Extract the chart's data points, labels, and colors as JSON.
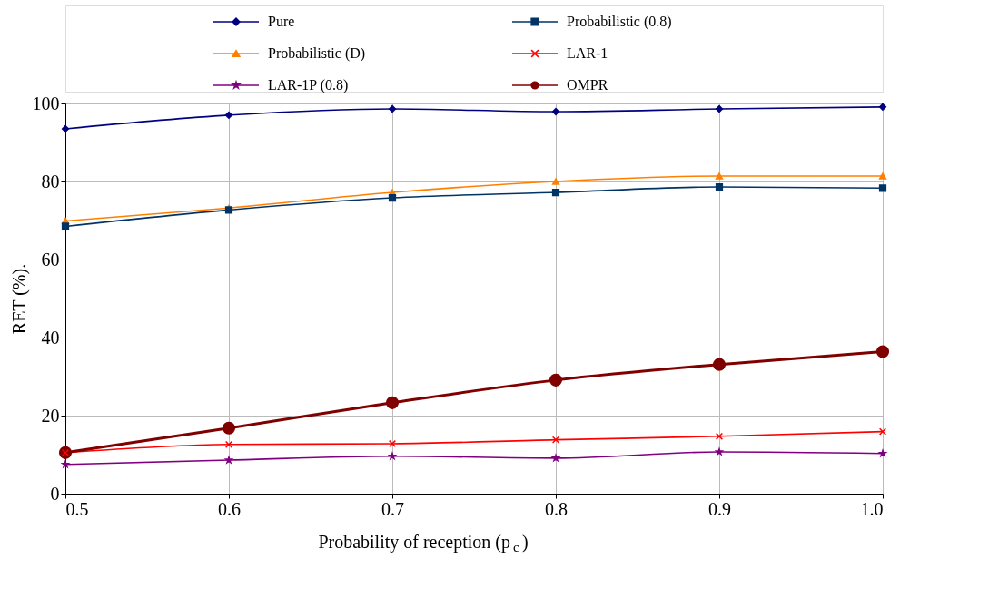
{
  "chart_data": {
    "type": "line",
    "xlabel": "Probability of reception (p$_{c}$)",
    "ylabel": "RET  (%).",
    "x": [
      0.5,
      0.6,
      0.7,
      0.8,
      0.9,
      1.0
    ],
    "xlim": [
      0.5,
      1.0
    ],
    "xticks": [
      0.5,
      0.6,
      0.7,
      0.8,
      0.9,
      {
        "value": 1.0,
        "label": "1.0"
      }
    ],
    "ylim": [
      0,
      100
    ],
    "yticks": [
      0,
      20,
      40,
      60,
      80,
      100
    ],
    "grid": true,
    "legend": "top",
    "series": [
      {
        "name": "Pure",
        "color": "#000080",
        "marker": "diamond",
        "values": [
          93.5,
          97.0,
          98.6,
          97.9,
          98.6,
          99.1
        ]
      },
      {
        "name": "Probabilistic (0.8)",
        "color": "#003366",
        "marker": "square",
        "values": [
          68.5,
          72.7,
          75.8,
          77.2,
          78.6,
          78.3
        ]
      },
      {
        "name": "Probabilistic (D)",
        "color": "#ff8000",
        "marker": "triangle",
        "values": [
          69.9,
          73.2,
          77.2,
          80.0,
          81.4,
          81.4
        ]
      },
      {
        "name": "LAR-1",
        "color": "#ff0000",
        "marker": "cross",
        "values": [
          10.5,
          12.6,
          12.8,
          13.8,
          14.7,
          15.9
        ]
      },
      {
        "name": "LAR-1P (0.8)",
        "color": "#800080",
        "marker": "star",
        "values": [
          7.5,
          8.6,
          9.6,
          9.1,
          10.7,
          10.3
        ]
      },
      {
        "name": "OMPR",
        "color": "#800000",
        "marker": "circle",
        "values": [
          10.5,
          16.8,
          23.3,
          29.1,
          33.1,
          36.4
        ]
      }
    ]
  }
}
